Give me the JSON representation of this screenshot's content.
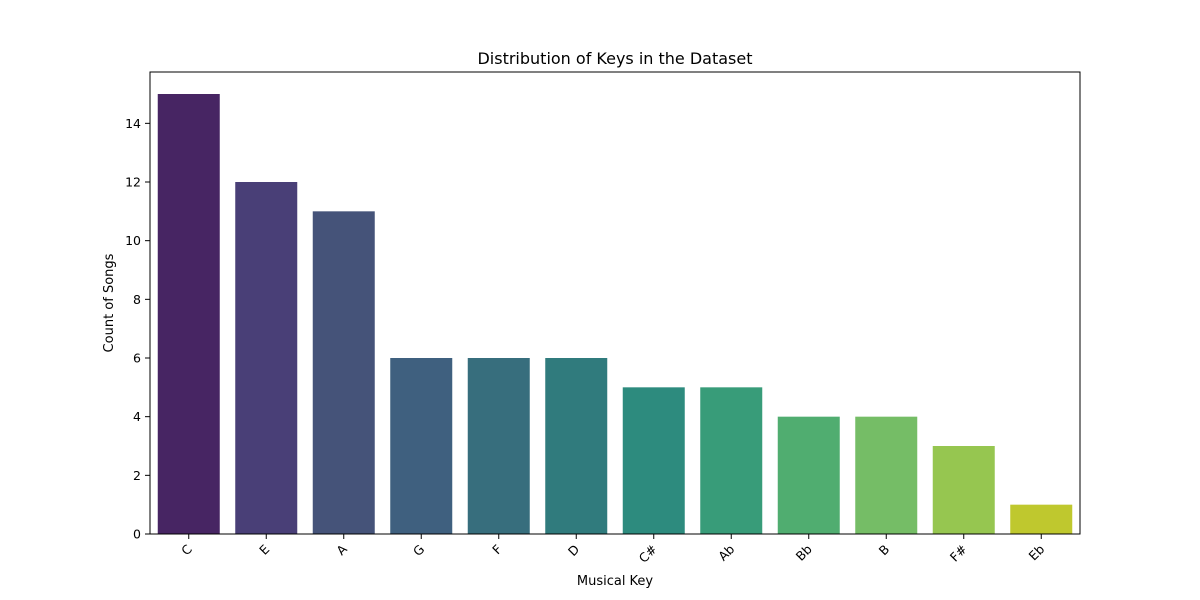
{
  "chart_data": {
    "type": "bar",
    "title": "Distribution of Keys in the Dataset",
    "xlabel": "Musical Key",
    "ylabel": "Count of Songs",
    "categories": [
      "C",
      "E",
      "A",
      "G",
      "F",
      "D",
      "C#",
      "Ab",
      "Bb",
      "B",
      "F#",
      "Eb"
    ],
    "values": [
      15,
      12,
      11,
      6,
      6,
      6,
      5,
      5,
      4,
      4,
      3,
      1
    ],
    "colors": [
      "#472563",
      "#493f77",
      "#455379",
      "#3f607f",
      "#376e7d",
      "#307b7d",
      "#2d8b7e",
      "#389c79",
      "#50ad70",
      "#75bd66",
      "#96c650",
      "#bfc82e"
    ],
    "ylim": [
      0,
      15.75
    ],
    "yticks": [
      0,
      2,
      4,
      6,
      8,
      10,
      12,
      14
    ],
    "grid": false,
    "legend": "none"
  }
}
